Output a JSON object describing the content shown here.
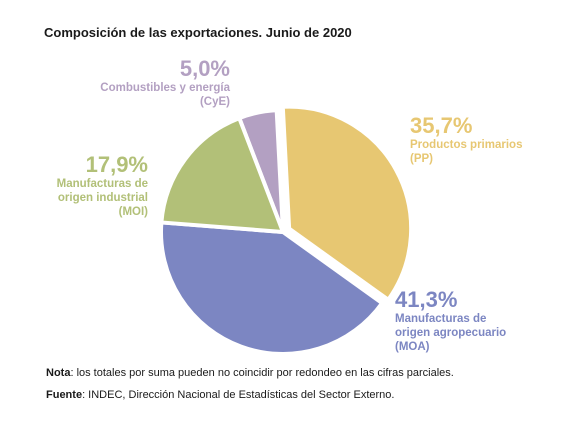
{
  "chart_data": {
    "type": "pie",
    "title": "Composición de las exportaciones. Junio de 2020",
    "slices": [
      {
        "pct_label": "5,0%",
        "value": 5.0,
        "category": "Combustibles y energía\n(CyE)",
        "color": "#b3a0c2"
      },
      {
        "pct_label": "35,7%",
        "value": 35.7,
        "category": "Productos primarios\n(PP)",
        "color": "#e7c772"
      },
      {
        "pct_label": "41,3%",
        "value": 41.3,
        "category": "Manufacturas de\norigen agropecuario\n(MOA)",
        "color": "#7c86c2"
      },
      {
        "pct_label": "17,9%",
        "value": 17.9,
        "category": "Manufacturas de\norigen industrial\n(MOI)",
        "color": "#b2c078"
      }
    ]
  },
  "footer": {
    "note_label": "Nota",
    "note_text": ": los totales por suma pueden no coincidir por redondeo en las cifras parciales.",
    "source_label": "Fuente",
    "source_text": ": INDEC, Dirección Nacional de Estadísticas del Sector Externo."
  }
}
